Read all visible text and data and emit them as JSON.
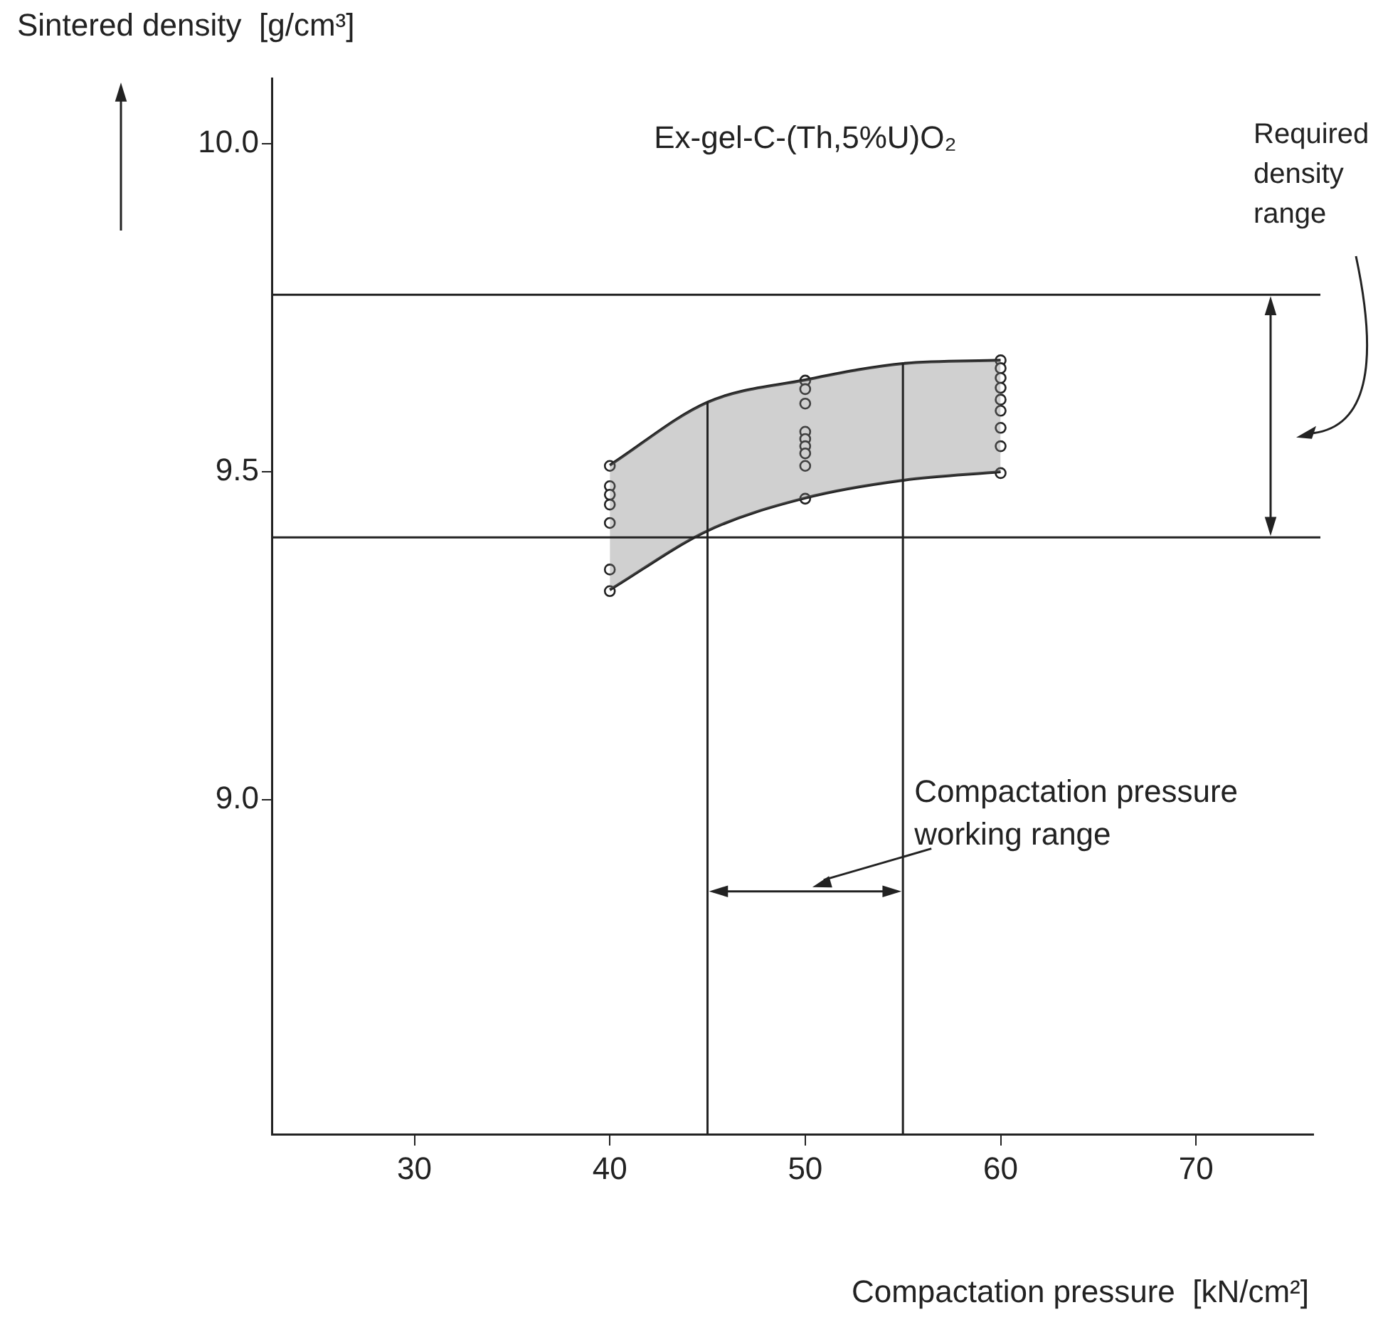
{
  "chart_data": {
    "type": "scatter",
    "title": "Ex-gel-C-(Th,5%U)O₂",
    "xlabel": "Compactation pressure  [kN/cm²]",
    "ylabel": "Sintered density  [g/cm³]",
    "xlim": [
      22.7,
      76
    ],
    "xticks": [
      30,
      40,
      50,
      60,
      70
    ],
    "ylim": [
      8.49,
      10.1
    ],
    "yticks": [
      {
        "value": 9.0,
        "label": "9.0"
      },
      {
        "value": 9.5,
        "label": "9.5"
      },
      {
        "value": 10.0,
        "label": "10.0"
      }
    ],
    "grid": false,
    "legend": false,
    "series": [
      {
        "type": "line",
        "marker": "none",
        "color": "#222222",
        "x": [
          40,
          45,
          50,
          55,
          60
        ],
        "values": [
          9.51,
          9.606,
          9.64,
          9.665,
          9.67
        ],
        "lower": [
          9.32,
          9.41,
          9.46,
          9.487,
          9.5
        ],
        "upper": [
          9.51,
          9.606,
          9.64,
          9.665,
          9.67
        ]
      },
      {
        "type": "line",
        "marker": "none",
        "color": "#222222",
        "x": [
          40,
          45,
          50,
          55,
          60
        ],
        "values": [
          9.32,
          9.41,
          9.46,
          9.487,
          9.5
        ]
      },
      {
        "type": "scatter",
        "marker": "circle",
        "color": "#222222",
        "x": [
          40,
          40,
          40,
          40,
          40,
          40,
          40,
          50,
          50,
          50,
          50,
          50,
          50,
          50,
          50,
          50,
          60,
          60,
          60,
          60,
          60,
          60,
          60,
          60,
          60
        ],
        "values": [
          9.509,
          9.478,
          9.465,
          9.45,
          9.422,
          9.351,
          9.318,
          9.639,
          9.626,
          9.604,
          9.561,
          9.55,
          9.539,
          9.528,
          9.509,
          9.459,
          9.67,
          9.658,
          9.643,
          9.628,
          9.61,
          9.593,
          9.567,
          9.539,
          9.498
        ]
      }
    ],
    "ref_lines": [
      {
        "axis": "y",
        "value": 9.4,
        "color": "#222222"
      },
      {
        "axis": "y",
        "value": 9.77,
        "label": "Required\ndensity\nrange",
        "color": "#222222"
      },
      {
        "axis": "x",
        "value": 45,
        "color": "#222222"
      },
      {
        "axis": "x",
        "value": 55,
        "label": "Compactation pressure\nworking range",
        "color": "#222222"
      }
    ]
  }
}
